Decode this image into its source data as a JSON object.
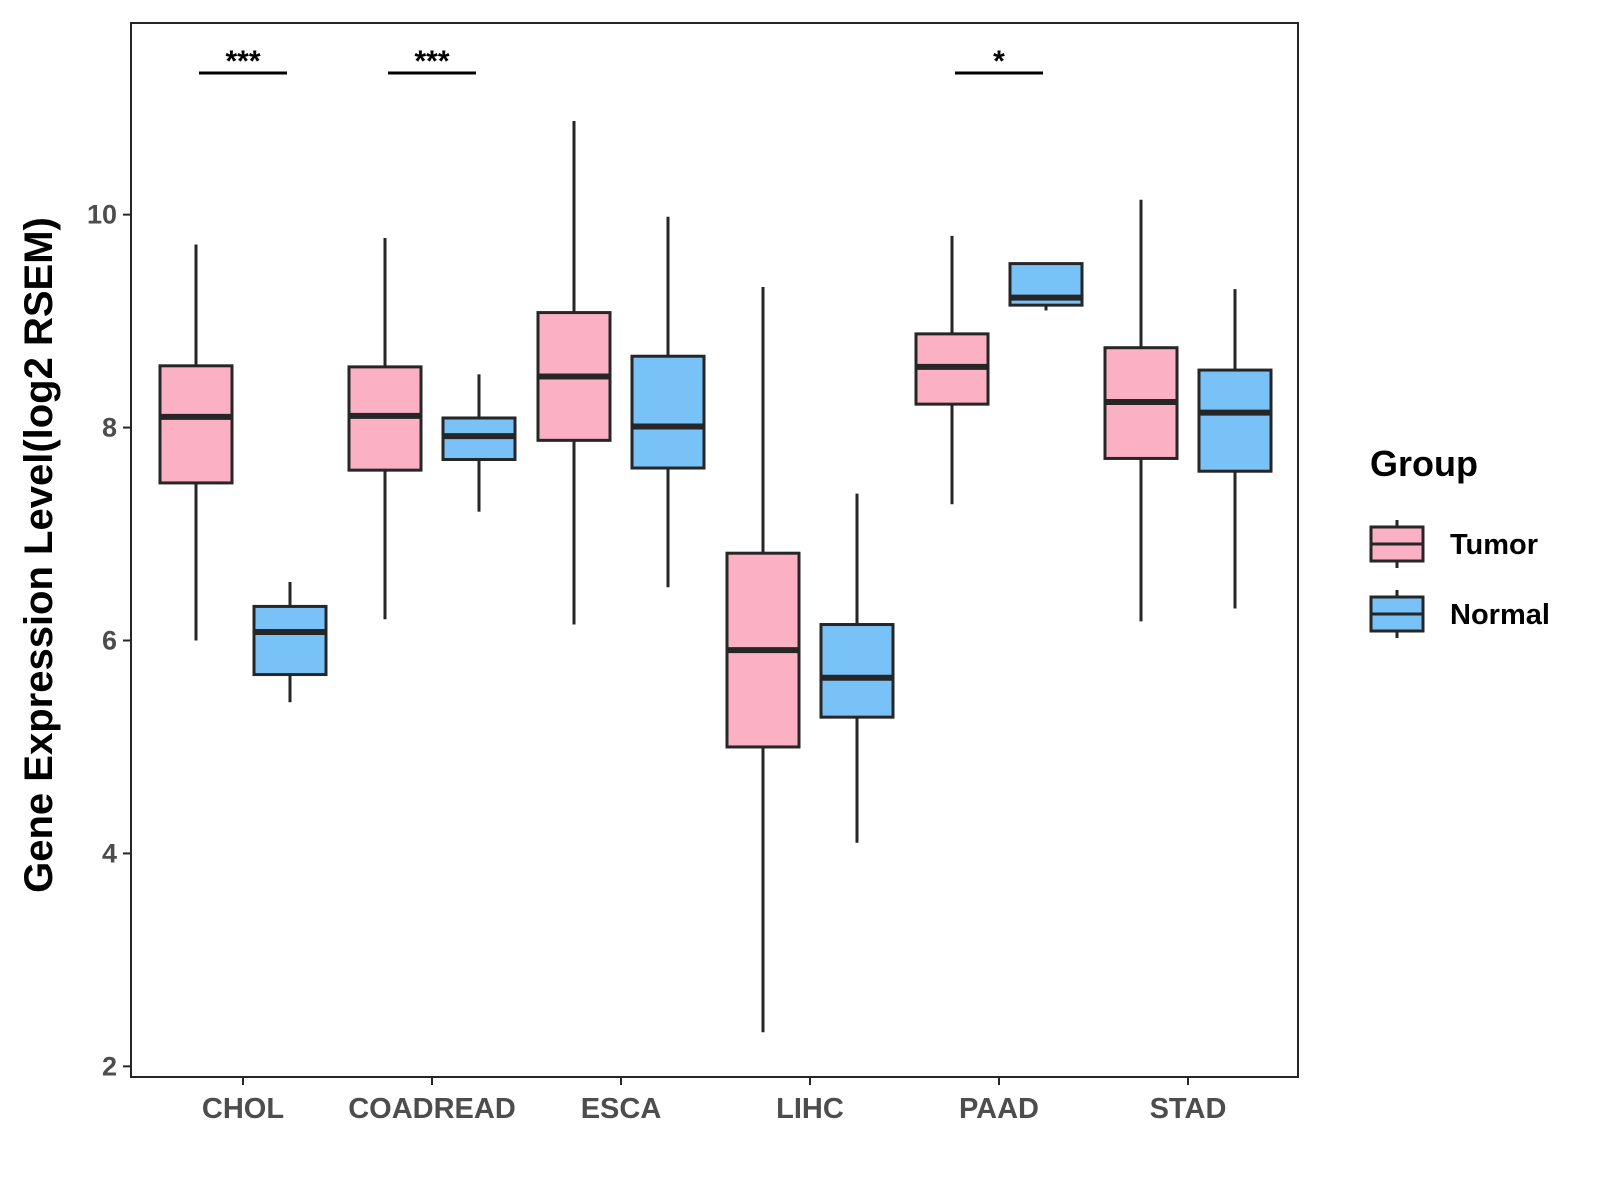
{
  "chart_data": {
    "type": "boxplot",
    "title": "",
    "xlabel": "",
    "ylabel": "Gene Expression Level(log2 RSEM)",
    "ylim": [
      1.9,
      11.8
    ],
    "yticks": [
      2,
      4,
      6,
      8,
      10
    ],
    "categories": [
      "CHOL",
      "COADREAD",
      "ESCA",
      "LIHC",
      "PAAD",
      "STAD"
    ],
    "legend": {
      "title": "Group",
      "position": "right",
      "entries": [
        {
          "name": "Tumor",
          "color": "#FBB1C3"
        },
        {
          "name": "Normal",
          "color": "#78C2F8"
        }
      ]
    },
    "series": [
      {
        "name": "Tumor",
        "color": "#FBB1C3",
        "boxes": [
          {
            "category": "CHOL",
            "min": 6.0,
            "q1": 7.48,
            "median": 8.1,
            "q3": 8.58,
            "max": 9.72
          },
          {
            "category": "COADREAD",
            "min": 6.2,
            "q1": 7.6,
            "median": 8.11,
            "q3": 8.57,
            "max": 9.78
          },
          {
            "category": "ESCA",
            "min": 6.15,
            "q1": 7.88,
            "median": 8.48,
            "q3": 9.08,
            "max": 10.88
          },
          {
            "category": "LIHC",
            "min": 2.32,
            "q1": 5.0,
            "median": 5.91,
            "q3": 6.82,
            "max": 9.32
          },
          {
            "category": "PAAD",
            "min": 7.28,
            "q1": 8.22,
            "median": 8.57,
            "q3": 8.88,
            "max": 9.8
          },
          {
            "category": "STAD",
            "min": 6.18,
            "q1": 7.71,
            "median": 8.24,
            "q3": 8.75,
            "max": 10.14
          }
        ]
      },
      {
        "name": "Normal",
        "color": "#78C2F8",
        "boxes": [
          {
            "category": "CHOL",
            "min": 5.42,
            "q1": 5.68,
            "median": 6.08,
            "q3": 6.32,
            "max": 6.55
          },
          {
            "category": "COADREAD",
            "min": 7.21,
            "q1": 7.7,
            "median": 7.92,
            "q3": 8.09,
            "max": 8.5
          },
          {
            "category": "ESCA",
            "min": 6.5,
            "q1": 7.62,
            "median": 8.01,
            "q3": 8.67,
            "max": 9.98
          },
          {
            "category": "LIHC",
            "min": 4.1,
            "q1": 5.28,
            "median": 5.65,
            "q3": 6.15,
            "max": 7.38
          },
          {
            "category": "PAAD",
            "min": 9.1,
            "q1": 9.15,
            "median": 9.22,
            "q3": 9.54,
            "max": 9.54
          },
          {
            "category": "STAD",
            "min": 6.3,
            "q1": 7.59,
            "median": 8.14,
            "q3": 8.54,
            "max": 9.3
          }
        ]
      }
    ],
    "significance": [
      {
        "category": "CHOL",
        "label": "***",
        "y": 11.33
      },
      {
        "category": "COADREAD",
        "label": "***",
        "y": 11.33
      },
      {
        "category": "PAAD",
        "label": "*",
        "y": 11.33
      }
    ]
  }
}
